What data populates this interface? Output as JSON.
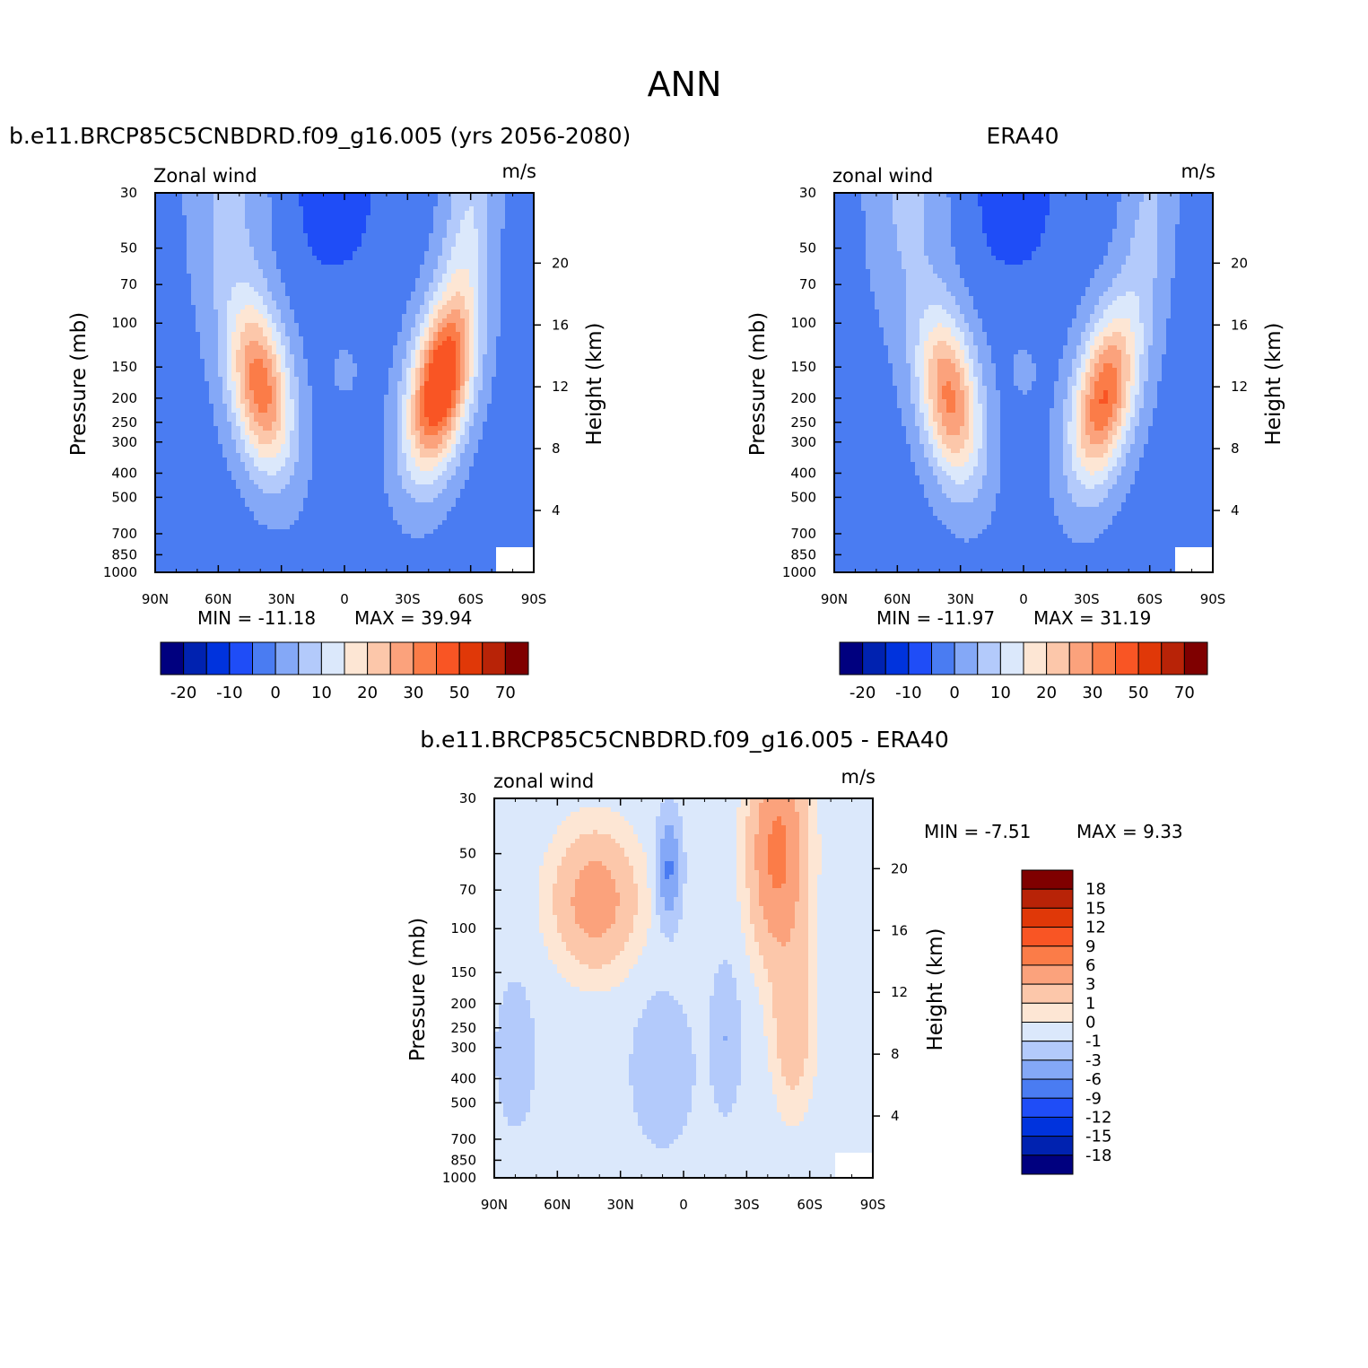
{
  "main_title": "ANN",
  "chart_data": [
    {
      "type": "heatmap",
      "panel": "top-left",
      "title": "b.e11.BRCP85C5CNBDRD.f09_g16.005 (yrs 2056-2080)",
      "variable": "Zonal wind",
      "units": "m/s",
      "xlabel": "",
      "ylabel": "Pressure (mb)",
      "ylabel_right": "Height (km)",
      "x_ticks": [
        "90N",
        "60N",
        "30N",
        "0",
        "30S",
        "60S",
        "90S"
      ],
      "y_ticks": [
        "30",
        "50",
        "70",
        "100",
        "150",
        "200",
        "250",
        "300",
        "400",
        "500",
        "700",
        "850",
        "1000"
      ],
      "y2_ticks": [
        "20",
        "16",
        "12",
        "8",
        "4"
      ],
      "ylim": [
        1000,
        30
      ],
      "y_scale": "log",
      "min_label": "MIN = -11.18",
      "max_label": "MAX = 39.94",
      "min": -11.18,
      "max": 39.94,
      "jets": [
        {
          "lat": 40,
          "p": 180,
          "speed": 28
        },
        {
          "lat": -45,
          "p": 180,
          "speed": 38
        }
      ],
      "colorbar": {
        "orientation": "horizontal",
        "labels": [
          "-20",
          "-10",
          "0",
          "10",
          "20",
          "30",
          "50",
          "70"
        ]
      }
    },
    {
      "type": "heatmap",
      "panel": "top-right",
      "title": "ERA40",
      "variable": "zonal wind",
      "units": "m/s",
      "xlabel": "",
      "ylabel": "Pressure (mb)",
      "ylabel_right": "Height (km)",
      "x_ticks": [
        "90N",
        "60N",
        "30N",
        "0",
        "30S",
        "60S",
        "90S"
      ],
      "y_ticks": [
        "30",
        "50",
        "70",
        "100",
        "150",
        "200",
        "250",
        "300",
        "400",
        "500",
        "700",
        "850",
        "1000"
      ],
      "y2_ticks": [
        "20",
        "16",
        "12",
        "8",
        "4"
      ],
      "ylim": [
        1000,
        30
      ],
      "y_scale": "log",
      "min_label": "MIN = -11.97",
      "max_label": "MAX = 31.19",
      "min": -11.97,
      "max": 31.19,
      "jets": [
        {
          "lat": 35,
          "p": 200,
          "speed": 26
        },
        {
          "lat": -38,
          "p": 200,
          "speed": 30
        }
      ],
      "colorbar": {
        "orientation": "horizontal",
        "labels": [
          "-20",
          "-10",
          "0",
          "10",
          "20",
          "30",
          "50",
          "70"
        ]
      }
    },
    {
      "type": "heatmap",
      "panel": "bottom",
      "title": "b.e11.BRCP85C5CNBDRD.f09_g16.005 - ERA40",
      "variable": "zonal wind",
      "units": "m/s",
      "xlabel": "",
      "ylabel": "Pressure (mb)",
      "ylabel_right": "Height (km)",
      "x_ticks": [
        "90N",
        "60N",
        "30N",
        "0",
        "30S",
        "60S",
        "90S"
      ],
      "y_ticks": [
        "30",
        "50",
        "70",
        "100",
        "150",
        "200",
        "250",
        "300",
        "400",
        "500",
        "700",
        "850",
        "1000"
      ],
      "y2_ticks": [
        "20",
        "16",
        "12",
        "8",
        "4"
      ],
      "ylim": [
        1000,
        30
      ],
      "y_scale": "log",
      "min_label": "MIN = -7.51",
      "max_label": "MAX = 9.33",
      "min": -7.51,
      "max": 9.33,
      "colorbar": {
        "orientation": "vertical",
        "labels": [
          "18",
          "15",
          "12",
          "9",
          "6",
          "3",
          "1",
          "0",
          "-1",
          "-3",
          "-6",
          "-9",
          "-12",
          "-15",
          "-18"
        ]
      }
    }
  ],
  "colors": {
    "level_colors": [
      "#00007f",
      "#0022b0",
      "#0033dd",
      "#1f4df7",
      "#4a7cf2",
      "#84a8f7",
      "#b3cafb",
      "#dbe8fb",
      "#fde6d4",
      "#fcc7aa",
      "#fba27c",
      "#fb7c48",
      "#f95524",
      "#e03808",
      "#b82307",
      "#7f0000"
    ]
  }
}
